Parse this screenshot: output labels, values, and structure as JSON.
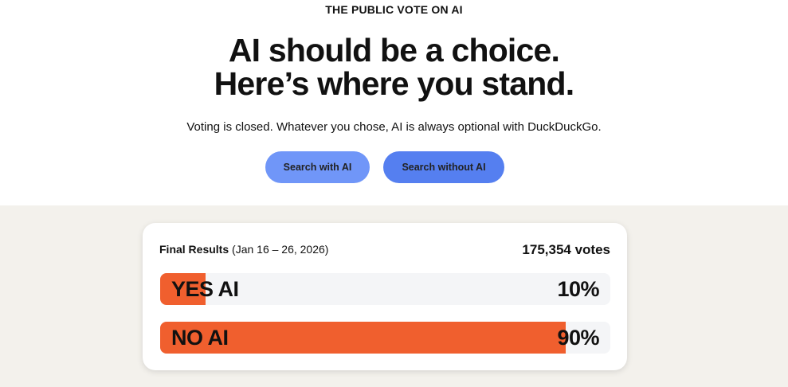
{
  "header": {
    "kicker": "THE PUBLIC VOTE ON AI",
    "headline_line1": "AI should be a choice.",
    "headline_line2": "Here’s where you stand.",
    "subtitle": "Voting is closed. Whatever you chose, AI is always optional with DuckDuckGo."
  },
  "buttons": {
    "with_ai": "Search with AI",
    "without_ai": "Search without AI"
  },
  "colors": {
    "accent": "#f05f2e",
    "button_with_ai": "#7096f8",
    "button_without_ai": "#557ff0",
    "track": "#f4f5f7",
    "section_bg": "#f3f1ec"
  },
  "results": {
    "title": "Final Results",
    "dates": "(Jan 16 – 26, 2026)",
    "votes": "175,354 votes",
    "options": [
      {
        "label": "YES AI",
        "percent_text": "10%",
        "percent": 10
      },
      {
        "label": "NO AI",
        "percent_text": "90%",
        "percent": 90
      }
    ]
  }
}
